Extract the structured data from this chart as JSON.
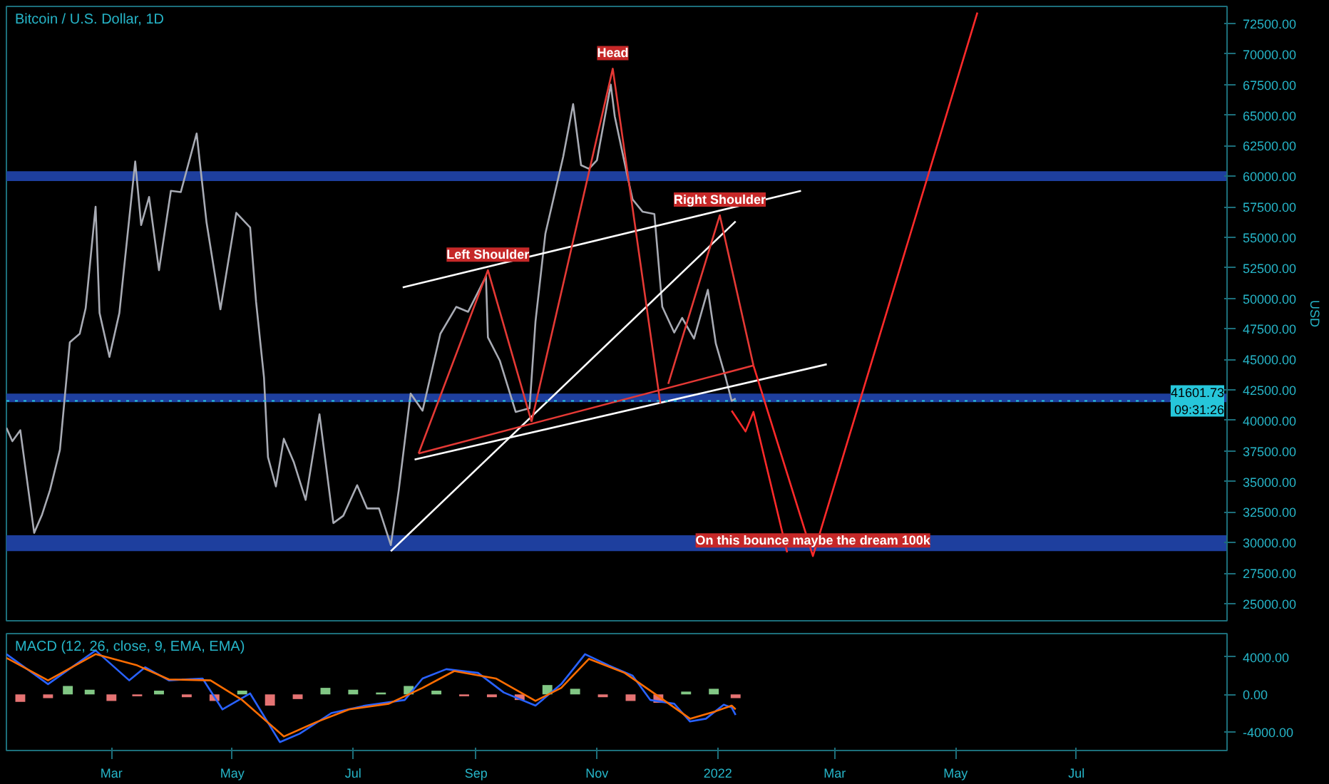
{
  "chart_data": [
    {
      "type": "line",
      "title": "Bitcoin / U.S. Dollar, 1D",
      "ylabel": "USD",
      "tick_labels": "y",
      "xlim": [
        "2021-01-07",
        "2022-09-15"
      ],
      "ylim": [
        23600,
        73900
      ],
      "yticks": [
        {
          "value": 25000,
          "label": "25000.00"
        },
        {
          "value": 27500,
          "label": "27500.00"
        },
        {
          "value": 30000,
          "label": "30000.00"
        },
        {
          "value": 32500,
          "label": "32500.00"
        },
        {
          "value": 35000,
          "label": "35000.00"
        },
        {
          "value": 37500,
          "label": "37500.00"
        },
        {
          "value": 40000,
          "label": "40000.00"
        },
        {
          "value": 42500,
          "label": "42500.00"
        },
        {
          "value": 45000,
          "label": "45000.00"
        },
        {
          "value": 47500,
          "label": "47500.00"
        },
        {
          "value": 50000,
          "label": "50000.00"
        },
        {
          "value": 52500,
          "label": "52500.00"
        },
        {
          "value": 55000,
          "label": "55000.00"
        },
        {
          "value": 57500,
          "label": "57500.00"
        },
        {
          "value": 60000,
          "label": "60000.00"
        },
        {
          "value": 62500,
          "label": "62500.00"
        },
        {
          "value": 65000,
          "label": "65000.00"
        },
        {
          "value": 67500,
          "label": "67500.00"
        },
        {
          "value": 70000,
          "label": "70000.00"
        },
        {
          "value": 72500,
          "label": "72500.00"
        }
      ],
      "series": [
        {
          "color": "#a8abb4",
          "x": [
            "2021-01-07",
            "2021-01-10",
            "2021-01-14",
            "2021-01-21",
            "2021-01-25",
            "2021-01-29",
            "2021-02-03",
            "2021-02-08",
            "2021-02-13",
            "2021-02-16",
            "2021-02-21",
            "2021-02-23",
            "2021-02-28",
            "2021-03-05",
            "2021-03-13",
            "2021-03-16",
            "2021-03-20",
            "2021-03-25",
            "2021-03-31",
            "2021-04-05",
            "2021-04-13",
            "2021-04-18",
            "2021-04-25",
            "2021-05-03",
            "2021-05-10",
            "2021-05-13",
            "2021-05-17",
            "2021-05-19",
            "2021-05-23",
            "2021-05-27",
            "2021-06-01",
            "2021-06-07",
            "2021-06-14",
            "2021-06-21",
            "2021-06-26",
            "2021-07-03",
            "2021-07-08",
            "2021-07-14",
            "2021-07-20",
            "2021-07-24",
            "2021-07-30",
            "2021-08-05",
            "2021-08-14",
            "2021-08-22",
            "2021-08-28",
            "2021-09-06",
            "2021-09-07",
            "2021-09-13",
            "2021-09-21",
            "2021-09-28",
            "2021-10-01",
            "2021-10-06",
            "2021-10-15",
            "2021-10-20",
            "2021-10-24",
            "2021-10-28",
            "2021-11-01",
            "2021-11-08",
            "2021-11-10",
            "2021-11-16",
            "2021-11-19",
            "2021-11-24",
            "2021-11-30",
            "2021-12-04",
            "2021-12-10",
            "2021-12-14",
            "2021-12-20",
            "2021-12-27",
            "2021-12-31",
            "2022-01-05",
            "2022-01-08",
            "2022-01-10"
          ],
          "values": [
            39400,
            38300,
            39200,
            30800,
            32300,
            34300,
            37600,
            46400,
            47100,
            49200,
            57500,
            48800,
            45200,
            48800,
            61200,
            56000,
            58300,
            52300,
            58800,
            58700,
            63500,
            56200,
            49100,
            57000,
            55800,
            49700,
            43500,
            37000,
            34600,
            38500,
            36600,
            33500,
            40500,
            31600,
            32200,
            34700,
            32800,
            32800,
            29800,
            34300,
            42200,
            40800,
            47100,
            49300,
            48900,
            51800,
            46800,
            44900,
            40700,
            41000,
            48100,
            55300,
            61600,
            65900,
            60900,
            60600,
            61300,
            67500,
            64900,
            60300,
            58100,
            57100,
            56900,
            49300,
            47200,
            48400,
            46700,
            50700,
            46300,
            43500,
            41600,
            41800
          ]
        },
        {
          "color": "#ffffff",
          "x": [
            "2021-07-26",
            "2022-02-12"
          ],
          "values": [
            50900,
            58800
          ]
        },
        {
          "color": "#ffffff",
          "x": [
            "2021-07-20",
            "2022-01-10"
          ],
          "values": [
            29300,
            56300
          ]
        },
        {
          "color": "#ffffff",
          "x": [
            "2021-08-01",
            "2022-02-25"
          ],
          "values": [
            36800,
            44600
          ]
        },
        {
          "color": "#e53935",
          "x": [
            "2021-08-03",
            "2021-09-07",
            "2021-09-29"
          ],
          "values": [
            37300,
            52300,
            39900
          ]
        },
        {
          "color": "#e53935",
          "x": [
            "2021-09-29",
            "2021-11-09",
            "2021-12-03"
          ],
          "values": [
            39900,
            68800,
            41400
          ]
        },
        {
          "color": "#e53935",
          "x": [
            "2021-12-07",
            "2022-01-02",
            "2022-01-19"
          ],
          "values": [
            43000,
            56800,
            44500
          ]
        },
        {
          "color": "#e53935",
          "x": [
            "2021-08-03",
            "2022-01-19"
          ],
          "values": [
            37300,
            44500
          ]
        },
        {
          "color": "#ff2a2a",
          "x": [
            "2022-01-08",
            "2022-01-15",
            "2022-01-19",
            "2022-02-05"
          ],
          "values": [
            40800,
            39100,
            40700,
            29200
          ]
        },
        {
          "color": "#ff2a2a",
          "x": [
            "2022-01-19",
            "2022-02-18",
            "2022-05-12"
          ],
          "values": [
            44500,
            28900,
            73400
          ]
        }
      ],
      "bands": [
        {
          "axis": "y",
          "from": 59600,
          "to": 60400,
          "color": "#1e3f9e"
        },
        {
          "axis": "y",
          "from": 41500,
          "to": 42200,
          "color": "#1e3f9e"
        },
        {
          "axis": "y",
          "from": 29300,
          "to": 30600,
          "color": "#1e3f9e"
        }
      ],
      "ref_lines": [
        {
          "axis": "y",
          "value": 41601.73,
          "label": "41601.73\n09:31:26",
          "color": "#26c6da",
          "line_style": "dotted"
        }
      ],
      "annotations": [
        {
          "text": "Head",
          "x": "2021-11-09",
          "y": 68800
        },
        {
          "text": "Left Shoulder",
          "x": "2021-09-07",
          "y": 52300
        },
        {
          "text": "Right Shoulder",
          "x": "2022-01-02",
          "y": 56800
        },
        {
          "text": "On this bounce maybe the dream 100k",
          "x": "2022-02-18",
          "y": 28900
        }
      ]
    },
    {
      "type": "line",
      "title": "MACD (12, 26, close, 9, EMA, EMA)",
      "xlim": [
        "2021-01-07",
        "2022-09-15"
      ],
      "ylim": [
        -6000,
        6500
      ],
      "xticks": [
        {
          "value": "2021-03-01",
          "label": "Mar"
        },
        {
          "value": "2021-05-01",
          "label": "May"
        },
        {
          "value": "2021-07-01",
          "label": "Jul"
        },
        {
          "value": "2021-09-01",
          "label": "Sep"
        },
        {
          "value": "2021-11-01",
          "label": "Nov"
        },
        {
          "value": "2022-01-01",
          "label": "2022"
        },
        {
          "value": "2022-03-01",
          "label": "Mar"
        },
        {
          "value": "2022-05-01",
          "label": "May"
        },
        {
          "value": "2022-07-01",
          "label": "Jul"
        }
      ],
      "yticks": [
        {
          "value": -4000,
          "label": "-4000.00"
        },
        {
          "value": 0,
          "label": "0.00"
        },
        {
          "value": 4000,
          "label": "4000.00"
        }
      ],
      "series": [
        {
          "type": "bar",
          "x": [
            "2021-01-14",
            "2021-01-28",
            "2021-02-07",
            "2021-02-18",
            "2021-03-01",
            "2021-03-14",
            "2021-03-25",
            "2021-04-08",
            "2021-04-22",
            "2021-05-06",
            "2021-05-20",
            "2021-06-03",
            "2021-06-17",
            "2021-07-01",
            "2021-07-15",
            "2021-07-29",
            "2021-08-12",
            "2021-08-26",
            "2021-09-09",
            "2021-09-23",
            "2021-10-07",
            "2021-10-21",
            "2021-11-04",
            "2021-11-18",
            "2021-12-02",
            "2021-12-16",
            "2021-12-30",
            "2022-01-10"
          ],
          "values": [
            -800,
            -400,
            900,
            500,
            -700,
            -200,
            400,
            -300,
            -700,
            400,
            -1200,
            -500,
            700,
            500,
            200,
            900,
            400,
            -200,
            -300,
            -600,
            1000,
            600,
            -300,
            -700,
            -900,
            300,
            600,
            -400
          ],
          "colors": [
            "#e57373",
            "#e57373",
            "#81c784",
            "#81c784",
            "#e57373",
            "#e57373",
            "#81c784",
            "#e57373",
            "#e57373",
            "#81c784",
            "#e57373",
            "#e57373",
            "#81c784",
            "#81c784",
            "#81c784",
            "#81c784",
            "#81c784",
            "#e57373",
            "#e57373",
            "#e57373",
            "#81c784",
            "#81c784",
            "#e57373",
            "#e57373",
            "#e57373",
            "#81c784",
            "#81c784",
            "#e57373"
          ]
        },
        {
          "type": "line",
          "color": "#2962ff",
          "x": [
            "2021-01-07",
            "2021-01-28",
            "2021-02-21",
            "2021-03-10",
            "2021-03-18",
            "2021-03-30",
            "2021-04-16",
            "2021-04-26",
            "2021-05-10",
            "2021-05-25",
            "2021-06-04",
            "2021-06-20",
            "2021-07-07",
            "2021-07-27",
            "2021-08-05",
            "2021-08-17",
            "2021-09-02",
            "2021-09-15",
            "2021-10-01",
            "2021-10-14",
            "2021-10-26",
            "2021-11-07",
            "2021-11-19",
            "2021-11-28",
            "2021-12-10",
            "2021-12-18",
            "2021-12-26",
            "2022-01-04",
            "2022-01-08",
            "2022-01-10"
          ],
          "values": [
            4300,
            1100,
            4700,
            1500,
            2900,
            1500,
            1700,
            -1600,
            100,
            -5100,
            -4200,
            -2000,
            -1200,
            -600,
            1700,
            2700,
            2300,
            200,
            -1200,
            1100,
            4300,
            3100,
            2000,
            -600,
            -1000,
            -2900,
            -2600,
            -1100,
            -1400,
            -2200
          ]
        },
        {
          "type": "line",
          "color": "#ff6d00",
          "x": [
            "2021-01-07",
            "2021-01-28",
            "2021-02-21",
            "2021-03-14",
            "2021-03-30",
            "2021-04-20",
            "2021-05-06",
            "2021-05-27",
            "2021-06-12",
            "2021-06-29",
            "2021-07-19",
            "2021-08-05",
            "2021-08-21",
            "2021-09-11",
            "2021-10-01",
            "2021-10-14",
            "2021-10-28",
            "2021-11-15",
            "2021-12-02",
            "2021-12-18",
            "2021-12-31",
            "2022-01-08",
            "2022-01-10"
          ],
          "values": [
            3900,
            1500,
            4300,
            3100,
            1600,
            1500,
            -600,
            -4500,
            -3000,
            -1600,
            -1000,
            700,
            2500,
            1700,
            -700,
            700,
            3800,
            2300,
            -200,
            -2600,
            -1800,
            -1200,
            -1600
          ]
        }
      ]
    }
  ]
}
